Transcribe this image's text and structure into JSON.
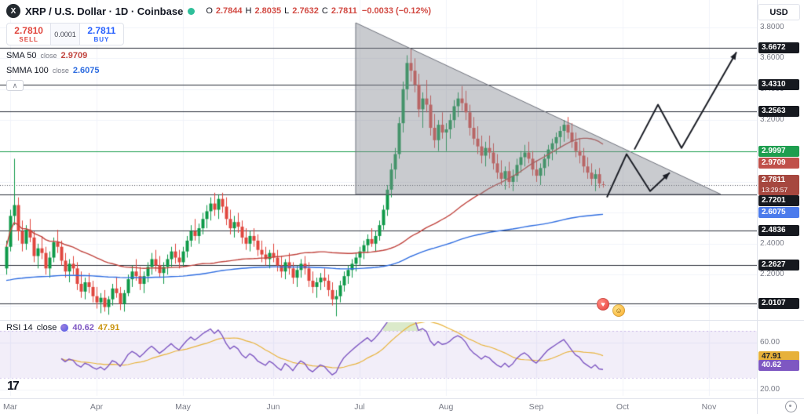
{
  "header": {
    "logo_letter": "X",
    "symbol_title": "XRP / U.S. Dollar · 1D · Coinbase",
    "ohlc": {
      "o_label": "O",
      "o": "2.7844",
      "h_label": "H",
      "h": "2.8035",
      "l_label": "L",
      "l": "2.7632",
      "c_label": "C",
      "c": "2.7811",
      "change": "−0.0033 (−0.12%)"
    },
    "currency_button": "USD"
  },
  "trade_widget": {
    "sell_price": "2.7810",
    "sell_label": "SELL",
    "spread": "0.0001",
    "buy_price": "2.7811",
    "buy_label": "BUY"
  },
  "indicators": {
    "sma": {
      "name": "SMA 50",
      "source": "close",
      "value": "2.9709"
    },
    "smma": {
      "name": "SMMA 100",
      "source": "close",
      "value": "2.6075"
    },
    "rsi": {
      "name": "RSI 14",
      "source": "close",
      "value": "40.62",
      "ma_value": "47.91"
    }
  },
  "controls": {
    "collapse_glyph": "∧"
  },
  "footer": {
    "tv_logo": "17"
  },
  "axis": {
    "price_plain": [
      {
        "text": "3.8000",
        "price": 3.8
      },
      {
        "text": "3.6000",
        "price": 3.6
      },
      {
        "text": "3.4000",
        "price": 3.4
      },
      {
        "text": "3.2000",
        "price": 3.2
      },
      {
        "text": "2.4000",
        "price": 2.4
      },
      {
        "text": "2.2000",
        "price": 2.2
      }
    ],
    "price_badges": [
      {
        "text": "3.6672",
        "price": 3.6672,
        "bg": "#16191f",
        "fg": "#ffffff"
      },
      {
        "text": "3.4310",
        "price": 3.431,
        "bg": "#16191f",
        "fg": "#ffffff"
      },
      {
        "text": "3.2563",
        "price": 3.2563,
        "bg": "#16191f",
        "fg": "#ffffff"
      },
      {
        "text": "2.9997",
        "price": 2.9997,
        "bg": "#1e9e4f",
        "fg": "#ffffff"
      },
      {
        "text": "2.9709",
        "price": 2.9709,
        "bg": "#c0504a",
        "fg": "#ffffff"
      },
      {
        "text": "2.7811",
        "price": 2.7811,
        "bg": "#a6473f",
        "fg": "#ffffff",
        "countdown": "13:29:57"
      },
      {
        "text": "2.7201",
        "price": 2.7201,
        "bg": "#16191f",
        "fg": "#ffffff"
      },
      {
        "text": "2.6075",
        "price": 2.6075,
        "bg": "#4b7bec",
        "fg": "#ffffff"
      },
      {
        "text": "2.4836",
        "price": 2.4836,
        "bg": "#16191f",
        "fg": "#ffffff"
      },
      {
        "text": "2.2627",
        "price": 2.2627,
        "bg": "#16191f",
        "fg": "#ffffff"
      },
      {
        "text": "2.0107",
        "price": 2.0107,
        "bg": "#16191f",
        "fg": "#ffffff"
      }
    ],
    "rsi_plain": [
      {
        "text": "60.00",
        "value": 60
      },
      {
        "text": "20.00",
        "value": 20
      }
    ],
    "rsi_badges": [
      {
        "text": "47.91",
        "value": 47.91,
        "bg": "#e7b13a",
        "fg": "#1f2329"
      },
      {
        "text": "40.62",
        "value": 40.62,
        "bg": "#7e57c2",
        "fg": "#ffffff"
      }
    ],
    "time_labels": [
      {
        "text": "Mar",
        "index": 1
      },
      {
        "text": "Apr",
        "index": 23
      },
      {
        "text": "May",
        "index": 45
      },
      {
        "text": "Jun",
        "index": 68
      },
      {
        "text": "Jul",
        "index": 90
      },
      {
        "text": "Aug",
        "index": 112
      },
      {
        "text": "Sep",
        "index": 135
      },
      {
        "text": "Oct",
        "index": 157
      },
      {
        "text": "Nov",
        "index": 179
      }
    ]
  },
  "chart_data": {
    "type": "candlestick",
    "symbol": "XRP/USD",
    "interval": "1D",
    "exchange": "Coinbase",
    "last_price": 2.7811,
    "colors": {
      "up": "#0e9948",
      "down": "#e0463e",
      "sma": "#c0443e",
      "smma": "#2f6de0",
      "rsi": "#7e57c2",
      "rsi_ma": "#e8b33c",
      "level": "#2a2e39",
      "level_green": "#1e9e4f",
      "triangle_fill": "rgba(136,139,149,0.45)",
      "triangle_stroke": "#6f727c",
      "projection": "#1b1e26",
      "grid": "#f0f3fa",
      "rsi_band": "rgba(126,87,194,0.10)",
      "rsi_band_edge": "rgba(126,87,194,0.35)",
      "overbought_fill": "rgba(124,179,66,0.28)",
      "last_line": "#50535e"
    },
    "overlays": {
      "sma_period": 50,
      "smma_period": 100,
      "smma_seed": 2.16,
      "rsi_period": 14,
      "rsi_ma_period": 14
    },
    "bands": {
      "rsi_upper": 70,
      "rsi_lower": 30
    },
    "levels": [
      {
        "price": 3.6672,
        "color": "level"
      },
      {
        "price": 3.431,
        "color": "level"
      },
      {
        "price": 3.2563,
        "color": "level"
      },
      {
        "price": 2.9997,
        "color": "level_green"
      },
      {
        "price": 2.7201,
        "color": "level"
      },
      {
        "price": 2.4836,
        "color": "level"
      },
      {
        "price": 2.2627,
        "color": "level"
      },
      {
        "price": 2.0107,
        "color": "level"
      }
    ],
    "drawings": {
      "triangle": [
        [
          89,
          3.83
        ],
        [
          89,
          2.72
        ],
        [
          182,
          2.72
        ]
      ],
      "projections": [
        [
          [
            153,
            2.7
          ],
          [
            158,
            2.98
          ],
          [
            164,
            2.74
          ],
          [
            169,
            2.86
          ]
        ],
        [
          [
            160,
            3.01
          ],
          [
            166,
            3.3
          ],
          [
            172,
            3.02
          ],
          [
            186,
            3.64
          ]
        ]
      ],
      "stickers": [
        {
          "name": "heart-emoji-sticker",
          "glyph": "♥",
          "index": 152,
          "price": 2.01,
          "cls": "sticker-heart"
        },
        {
          "name": "laugh-emoji-sticker",
          "glyph": "☺",
          "index": 156,
          "price": 1.97,
          "cls": "sticker-laugh"
        }
      ]
    },
    "candles": [
      [
        2.24,
        2.42,
        2.2,
        2.38
      ],
      [
        2.38,
        2.62,
        2.35,
        2.58
      ],
      [
        2.58,
        2.95,
        2.52,
        2.65
      ],
      [
        2.65,
        2.7,
        2.42,
        2.48
      ],
      [
        2.48,
        2.55,
        2.35,
        2.4
      ],
      [
        2.4,
        2.52,
        2.36,
        2.49
      ],
      [
        2.49,
        2.56,
        2.41,
        2.44
      ],
      [
        2.44,
        2.48,
        2.28,
        2.32
      ],
      [
        2.32,
        2.4,
        2.24,
        2.37
      ],
      [
        2.37,
        2.45,
        2.3,
        2.34
      ],
      [
        2.34,
        2.38,
        2.2,
        2.24
      ],
      [
        2.24,
        2.35,
        2.18,
        2.31
      ],
      [
        2.31,
        2.44,
        2.28,
        2.41
      ],
      [
        2.41,
        2.49,
        2.34,
        2.38
      ],
      [
        2.38,
        2.42,
        2.26,
        2.29
      ],
      [
        2.29,
        2.34,
        2.18,
        2.22
      ],
      [
        2.22,
        2.3,
        2.15,
        2.27
      ],
      [
        2.27,
        2.32,
        2.2,
        2.24
      ],
      [
        2.24,
        2.28,
        2.1,
        2.14
      ],
      [
        2.14,
        2.22,
        2.05,
        2.09
      ],
      [
        2.09,
        2.18,
        2.04,
        2.15
      ],
      [
        2.15,
        2.21,
        2.08,
        2.12
      ],
      [
        2.12,
        2.16,
        2.02,
        2.06
      ],
      [
        2.06,
        2.12,
        1.98,
        2.02
      ],
      [
        2.02,
        2.08,
        1.95,
        2.05
      ],
      [
        2.05,
        2.1,
        1.96,
        1.99
      ],
      [
        1.99,
        2.06,
        1.94,
        2.04
      ],
      [
        2.04,
        2.14,
        2.0,
        2.11
      ],
      [
        2.11,
        2.18,
        2.05,
        2.08
      ],
      [
        2.08,
        2.12,
        1.97,
        2.01
      ],
      [
        2.01,
        2.1,
        1.96,
        2.08
      ],
      [
        2.08,
        2.2,
        2.06,
        2.17
      ],
      [
        2.17,
        2.26,
        2.12,
        2.22
      ],
      [
        2.22,
        2.3,
        2.16,
        2.19
      ],
      [
        2.19,
        2.25,
        2.1,
        2.14
      ],
      [
        2.14,
        2.22,
        2.08,
        2.19
      ],
      [
        2.19,
        2.28,
        2.15,
        2.25
      ],
      [
        2.25,
        2.34,
        2.2,
        2.3
      ],
      [
        2.3,
        2.36,
        2.22,
        2.26
      ],
      [
        2.26,
        2.32,
        2.18,
        2.21
      ],
      [
        2.21,
        2.28,
        2.14,
        2.25
      ],
      [
        2.25,
        2.33,
        2.2,
        2.3
      ],
      [
        2.3,
        2.38,
        2.25,
        2.35
      ],
      [
        2.35,
        2.4,
        2.27,
        2.31
      ],
      [
        2.31,
        2.36,
        2.24,
        2.28
      ],
      [
        2.28,
        2.38,
        2.25,
        2.35
      ],
      [
        2.35,
        2.45,
        2.31,
        2.42
      ],
      [
        2.42,
        2.52,
        2.38,
        2.48
      ],
      [
        2.48,
        2.56,
        2.42,
        2.45
      ],
      [
        2.45,
        2.53,
        2.4,
        2.5
      ],
      [
        2.5,
        2.6,
        2.46,
        2.56
      ],
      [
        2.56,
        2.65,
        2.5,
        2.61
      ],
      [
        2.61,
        2.7,
        2.55,
        2.66
      ],
      [
        2.66,
        2.73,
        2.58,
        2.62
      ],
      [
        2.62,
        2.72,
        2.56,
        2.69
      ],
      [
        2.69,
        2.73,
        2.6,
        2.64
      ],
      [
        2.64,
        2.7,
        2.52,
        2.56
      ],
      [
        2.56,
        2.62,
        2.46,
        2.5
      ],
      [
        2.5,
        2.58,
        2.44,
        2.54
      ],
      [
        2.54,
        2.6,
        2.47,
        2.51
      ],
      [
        2.51,
        2.55,
        2.4,
        2.44
      ],
      [
        2.44,
        2.5,
        2.36,
        2.4
      ],
      [
        2.4,
        2.48,
        2.35,
        2.45
      ],
      [
        2.45,
        2.5,
        2.38,
        2.42
      ],
      [
        2.42,
        2.46,
        2.32,
        2.36
      ],
      [
        2.36,
        2.42,
        2.28,
        2.33
      ],
      [
        2.33,
        2.38,
        2.26,
        2.3
      ],
      [
        2.3,
        2.36,
        2.24,
        2.34
      ],
      [
        2.34,
        2.4,
        2.28,
        2.31
      ],
      [
        2.31,
        2.36,
        2.22,
        2.26
      ],
      [
        2.26,
        2.32,
        2.18,
        2.22
      ],
      [
        2.22,
        2.3,
        2.17,
        2.28
      ],
      [
        2.28,
        2.34,
        2.2,
        2.24
      ],
      [
        2.24,
        2.28,
        2.14,
        2.18
      ],
      [
        2.18,
        2.26,
        2.12,
        2.23
      ],
      [
        2.23,
        2.3,
        2.18,
        2.27
      ],
      [
        2.27,
        2.32,
        2.2,
        2.24
      ],
      [
        2.24,
        2.28,
        2.12,
        2.16
      ],
      [
        2.16,
        2.22,
        2.08,
        2.12
      ],
      [
        2.12,
        2.18,
        2.05,
        2.15
      ],
      [
        2.15,
        2.21,
        2.1,
        2.18
      ],
      [
        2.18,
        2.24,
        2.12,
        2.16
      ],
      [
        2.16,
        2.2,
        2.06,
        2.1
      ],
      [
        2.1,
        2.15,
        2.0,
        2.04
      ],
      [
        2.04,
        2.1,
        1.93,
        2.06
      ],
      [
        2.06,
        2.16,
        2.02,
        2.13
      ],
      [
        2.13,
        2.22,
        2.09,
        2.19
      ],
      [
        2.19,
        2.26,
        2.14,
        2.23
      ],
      [
        2.23,
        2.3,
        2.18,
        2.27
      ],
      [
        2.27,
        2.34,
        2.22,
        2.31
      ],
      [
        2.31,
        2.38,
        2.26,
        2.35
      ],
      [
        2.35,
        2.42,
        2.3,
        2.39
      ],
      [
        2.39,
        2.46,
        2.34,
        2.43
      ],
      [
        2.43,
        2.5,
        2.38,
        2.4
      ],
      [
        2.4,
        2.48,
        2.35,
        2.45
      ],
      [
        2.45,
        2.55,
        2.42,
        2.52
      ],
      [
        2.52,
        2.65,
        2.49,
        2.62
      ],
      [
        2.62,
        2.78,
        2.58,
        2.75
      ],
      [
        2.75,
        2.92,
        2.7,
        2.88
      ],
      [
        2.88,
        3.02,
        2.82,
        2.98
      ],
      [
        2.98,
        3.22,
        2.95,
        3.18
      ],
      [
        3.18,
        3.45,
        3.12,
        3.4
      ],
      [
        3.4,
        3.62,
        3.33,
        3.57
      ],
      [
        3.57,
        3.66,
        3.45,
        3.52
      ],
      [
        3.52,
        3.6,
        3.38,
        3.43
      ],
      [
        3.43,
        3.5,
        3.22,
        3.27
      ],
      [
        3.27,
        3.38,
        3.15,
        3.34
      ],
      [
        3.34,
        3.46,
        3.25,
        3.3
      ],
      [
        3.3,
        3.36,
        3.1,
        3.15
      ],
      [
        3.15,
        3.24,
        3.02,
        3.07
      ],
      [
        3.07,
        3.2,
        3.0,
        3.17
      ],
      [
        3.17,
        3.25,
        3.08,
        3.12
      ],
      [
        3.12,
        3.18,
        3.0,
        3.14
      ],
      [
        3.14,
        3.24,
        3.08,
        3.2
      ],
      [
        3.2,
        3.33,
        3.15,
        3.29
      ],
      [
        3.29,
        3.38,
        3.22,
        3.34
      ],
      [
        3.34,
        3.42,
        3.26,
        3.31
      ],
      [
        3.31,
        3.39,
        3.2,
        3.25
      ],
      [
        3.25,
        3.3,
        3.1,
        3.15
      ],
      [
        3.15,
        3.22,
        3.04,
        3.08
      ],
      [
        3.08,
        3.16,
        2.98,
        3.03
      ],
      [
        3.03,
        3.1,
        2.92,
        2.97
      ],
      [
        2.97,
        3.06,
        2.9,
        3.02
      ],
      [
        3.02,
        3.1,
        2.95,
        2.99
      ],
      [
        2.99,
        3.05,
        2.88,
        2.92
      ],
      [
        2.92,
        2.98,
        2.82,
        2.86
      ],
      [
        2.86,
        2.94,
        2.78,
        2.82
      ],
      [
        2.82,
        2.9,
        2.75,
        2.87
      ],
      [
        2.87,
        2.93,
        2.76,
        2.8
      ],
      [
        2.8,
        2.88,
        2.74,
        2.84
      ],
      [
        2.84,
        2.95,
        2.8,
        2.91
      ],
      [
        2.91,
        3.0,
        2.86,
        2.96
      ],
      [
        2.96,
        3.04,
        2.9,
        2.99
      ],
      [
        2.99,
        3.06,
        2.92,
        2.95
      ],
      [
        2.95,
        3.0,
        2.84,
        2.88
      ],
      [
        2.88,
        2.94,
        2.8,
        2.84
      ],
      [
        2.84,
        2.92,
        2.78,
        2.89
      ],
      [
        2.89,
        2.98,
        2.84,
        2.95
      ],
      [
        2.95,
        3.04,
        2.9,
        3.01
      ],
      [
        3.01,
        3.08,
        2.94,
        3.05
      ],
      [
        3.05,
        3.12,
        2.98,
        3.09
      ],
      [
        3.09,
        3.16,
        3.02,
        3.13
      ],
      [
        3.13,
        3.2,
        3.06,
        3.17
      ],
      [
        3.17,
        3.22,
        3.08,
        3.12
      ],
      [
        3.12,
        3.18,
        3.02,
        3.06
      ],
      [
        3.06,
        3.12,
        2.96,
        3.0
      ],
      [
        3.0,
        3.08,
        2.92,
        2.97
      ],
      [
        2.97,
        3.02,
        2.86,
        2.9
      ],
      [
        2.9,
        2.96,
        2.82,
        2.86
      ],
      [
        2.86,
        2.92,
        2.78,
        2.82
      ],
      [
        2.82,
        2.88,
        2.74,
        2.85
      ],
      [
        2.85,
        2.89,
        2.76,
        2.79
      ],
      [
        2.7844,
        2.8035,
        2.7632,
        2.7811
      ]
    ]
  }
}
